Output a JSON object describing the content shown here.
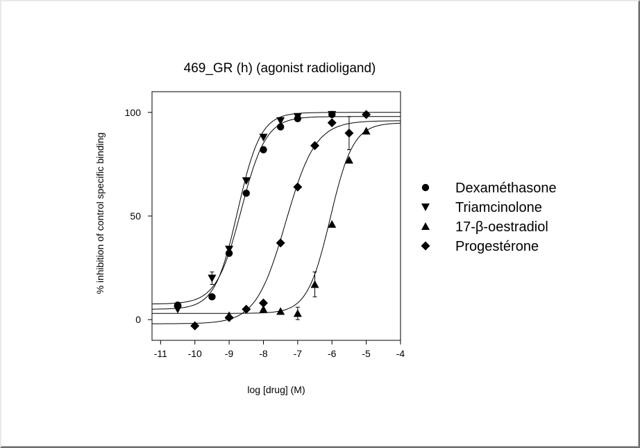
{
  "chart_data": {
    "type": "scatter",
    "title": "469_GR (h) (agonist radioligand)",
    "xlabel": "log [drug]  (M)",
    "ylabel": "% inhibition of control specific binding",
    "xlim": [
      -11.25,
      -4
    ],
    "ylim": [
      -10,
      110
    ],
    "x_ticks": [
      -11,
      -10,
      -9,
      -8,
      -7,
      -6,
      -5,
      -4
    ],
    "y_ticks": [
      0,
      50,
      100
    ],
    "grid": false,
    "legend_position": "right",
    "series": [
      {
        "name": "Dexaméthasone",
        "marker": "circle",
        "points": [
          {
            "x": -10.5,
            "y": 7
          },
          {
            "x": -9.5,
            "y": 11
          },
          {
            "x": -9,
            "y": 32
          },
          {
            "x": -8.5,
            "y": 61
          },
          {
            "x": -8,
            "y": 82
          },
          {
            "x": -7.5,
            "y": 93
          },
          {
            "x": -7,
            "y": 97
          },
          {
            "x": -6,
            "y": 99
          }
        ],
        "fit": {
          "bottom": 7.5,
          "top": 98,
          "log_ec50": -8.65,
          "hill": 1.2
        }
      },
      {
        "name": "Triamcinolone",
        "marker": "triangle-down",
        "points": [
          {
            "x": -10.5,
            "y": 5
          },
          {
            "x": -9.5,
            "y": 20,
            "err": 3
          },
          {
            "x": -9,
            "y": 34
          },
          {
            "x": -8.5,
            "y": 67
          },
          {
            "x": -8,
            "y": 88
          },
          {
            "x": -7.5,
            "y": 96
          },
          {
            "x": -7,
            "y": 98
          },
          {
            "x": -6,
            "y": 99
          }
        ],
        "fit": {
          "bottom": 5,
          "top": 100,
          "log_ec50": -8.75,
          "hill": 1.3
        }
      },
      {
        "name": "17-β-oestradiol",
        "marker": "triangle-up",
        "points": [
          {
            "x": -9,
            "y": 2
          },
          {
            "x": -8,
            "y": 5
          },
          {
            "x": -7.5,
            "y": 4
          },
          {
            "x": -7,
            "y": 3,
            "err": 3
          },
          {
            "x": -6.5,
            "y": 17,
            "err": 6
          },
          {
            "x": -6,
            "y": 46
          },
          {
            "x": -5.5,
            "y": 77
          },
          {
            "x": -5,
            "y": 91
          }
        ],
        "fit": {
          "bottom": 3,
          "top": 95,
          "log_ec50": -6.05,
          "hill": 1.3
        }
      },
      {
        "name": "Progestérone",
        "marker": "diamond",
        "points": [
          {
            "x": -10,
            "y": -3
          },
          {
            "x": -9,
            "y": 1
          },
          {
            "x": -8.5,
            "y": 5
          },
          {
            "x": -8,
            "y": 8
          },
          {
            "x": -7.5,
            "y": 37
          },
          {
            "x": -7,
            "y": 64
          },
          {
            "x": -6.5,
            "y": 84
          },
          {
            "x": -6,
            "y": 95
          },
          {
            "x": -5.5,
            "y": 90,
            "err": 8
          },
          {
            "x": -5,
            "y": 99
          }
        ],
        "fit": {
          "bottom": -2,
          "top": 96,
          "log_ec50": -7.35,
          "hill": 1.0
        }
      }
    ]
  }
}
